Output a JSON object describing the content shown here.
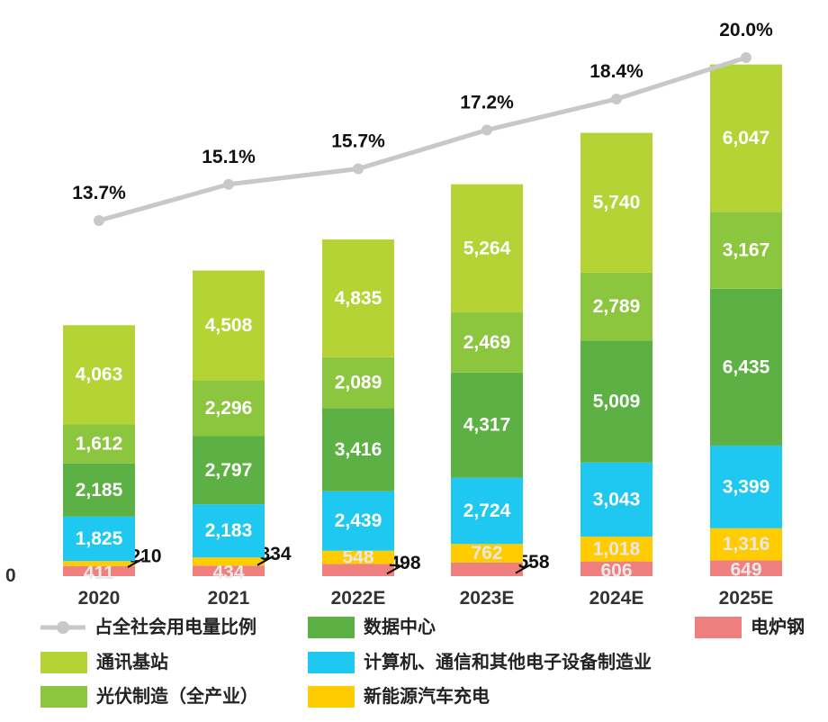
{
  "chart_data": {
    "type": "bar",
    "stacked": true,
    "categories": [
      "2020",
      "2021",
      "2022E",
      "2023E",
      "2024E",
      "2025E"
    ],
    "series": [
      {
        "name": "电炉钢",
        "key": "steel",
        "color": "#f08080",
        "values": [
          411,
          434,
          498,
          558,
          606,
          649
        ]
      },
      {
        "name": "新能源汽车充电",
        "key": "ev",
        "color": "#ffcc00",
        "values": [
          210,
          334,
          548,
          762,
          1018,
          1316
        ]
      },
      {
        "name": "计算机、通信和其他电子设备制造业",
        "key": "electronics",
        "color": "#1fc8f0",
        "values": [
          1825,
          2183,
          2439,
          2724,
          3043,
          3399
        ]
      },
      {
        "name": "数据中心",
        "key": "datacenter",
        "color": "#5cb044",
        "values": [
          2185,
          2797,
          3416,
          4317,
          5009,
          6435
        ]
      },
      {
        "name": "光伏制造（全产业）",
        "key": "pv",
        "color": "#8cc63f",
        "values": [
          1612,
          2296,
          2089,
          2469,
          2789,
          3167
        ]
      },
      {
        "name": "通讯基站",
        "key": "telecom",
        "color": "#b5d335",
        "values": [
          4063,
          4508,
          4835,
          5264,
          5740,
          6047
        ]
      }
    ],
    "line_series": {
      "name": "占全社会用电量比例",
      "color": "#c8c8c8",
      "values": [
        13.7,
        15.1,
        15.7,
        17.2,
        18.4,
        20.0
      ],
      "labels": [
        "13.7%",
        "15.1%",
        "15.7%",
        "17.2%",
        "18.4%",
        "20.0%"
      ]
    },
    "value_labels": {
      "steel": [
        "411",
        "434",
        "498",
        "558",
        "606",
        "649"
      ],
      "ev": [
        "210",
        "334",
        "548",
        "762",
        "1,018",
        "1,316"
      ],
      "electronics": [
        "1,825",
        "2,183",
        "2,439",
        "2,724",
        "3,043",
        "3,399"
      ],
      "datacenter": [
        "2,185",
        "2,797",
        "3,416",
        "4,317",
        "5,009",
        "6,435"
      ],
      "pv": [
        "1,612",
        "2,296",
        "2,089",
        "2,469",
        "2,789",
        "3,167"
      ],
      "telecom": [
        "4,063",
        "4,508",
        "4,835",
        "5,264",
        "5,740",
        "6,047"
      ]
    },
    "y_zero_label": "0",
    "ylim": [
      0,
      22500
    ],
    "legend": [
      {
        "key": "line",
        "label": "占全社会用电量比例"
      },
      {
        "key": "datacenter",
        "label": "数据中心"
      },
      {
        "key": "steel",
        "label": "电炉钢"
      },
      {
        "key": "telecom",
        "label": "通讯基站"
      },
      {
        "key": "electronics",
        "label": "计算机、通信和其他电子设备制造业"
      },
      {
        "key": "pv",
        "label": "光伏制造（全产业）"
      },
      {
        "key": "ev",
        "label": "新能源汽车充电"
      }
    ]
  }
}
